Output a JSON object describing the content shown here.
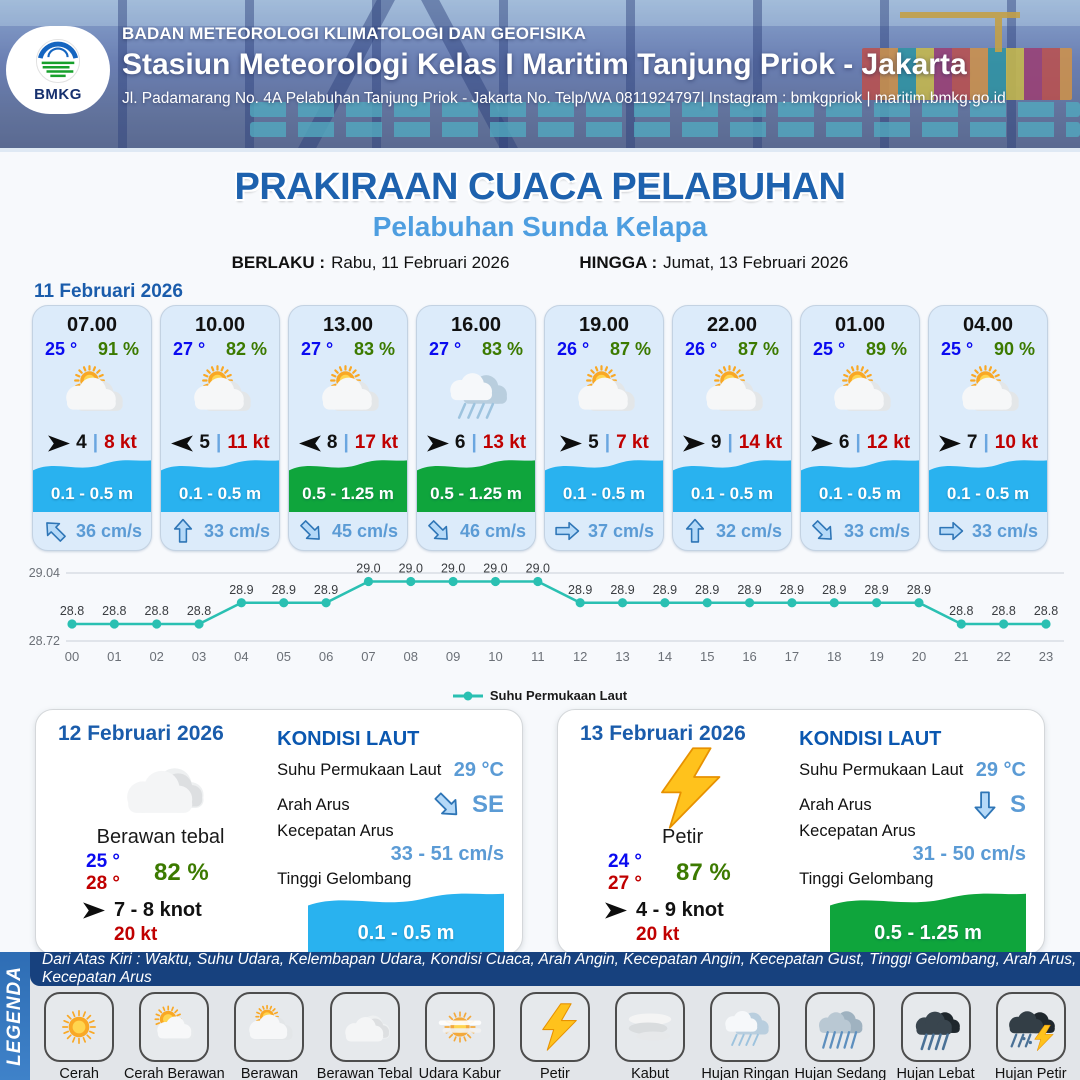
{
  "header": {
    "org": "BADAN METEOROLOGI KLIMATOLOGI DAN GEOFISIKA",
    "station": "Stasiun Meteorologi Kelas I Maritim Tanjung Priok - Jakarta",
    "address": "Jl. Padamarang No. 4A Pelabuhan Tanjung Priok - Jakarta No. Telp/WA 0811924797| Instagram : bmkgpriok | maritim.bmkg.go.id",
    "logo_text": "BMKG"
  },
  "title": {
    "main": "PRAKIRAAN CUACA PELABUHAN",
    "sub": "Pelabuhan Sunda Kelapa",
    "berlaku_label": "BERLAKU :",
    "berlaku_value": "Rabu, 11 Februari 2026",
    "hingga_label": "HINGGA :",
    "hingga_value": "Jumat, 13 Februari 2026"
  },
  "forecast": {
    "date": "11 Februari 2026",
    "cards": [
      {
        "time": "07.00",
        "temp": "25 °",
        "humidity": "91 %",
        "weather_icon": "berawan",
        "wind_dir": "e",
        "wind_speed": "4",
        "gust": "8 kt",
        "wave_height": "0.1 - 0.5 m",
        "wave_color": "cyan",
        "current_dir": "nw",
        "current_speed": "36 cm/s"
      },
      {
        "time": "10.00",
        "temp": "27 °",
        "humidity": "82 %",
        "weather_icon": "berawan",
        "wind_dir": "w",
        "wind_speed": "5",
        "gust": "11 kt",
        "wave_height": "0.1 - 0.5 m",
        "wave_color": "cyan",
        "current_dir": "n",
        "current_speed": "33 cm/s"
      },
      {
        "time": "13.00",
        "temp": "27 °",
        "humidity": "83 %",
        "weather_icon": "berawan",
        "wind_dir": "w",
        "wind_speed": "8",
        "gust": "17 kt",
        "wave_height": "0.5 - 1.25 m",
        "wave_color": "green",
        "current_dir": "se",
        "current_speed": "45 cm/s"
      },
      {
        "time": "16.00",
        "temp": "27 °",
        "humidity": "83 %",
        "weather_icon": "hujan-ringan",
        "wind_dir": "e",
        "wind_speed": "6",
        "gust": "13 kt",
        "wave_height": "0.5 - 1.25 m",
        "wave_color": "green",
        "current_dir": "se",
        "current_speed": "46 cm/s"
      },
      {
        "time": "19.00",
        "temp": "26 °",
        "humidity": "87 %",
        "weather_icon": "berawan",
        "wind_dir": "e",
        "wind_speed": "5",
        "gust": "7 kt",
        "wave_height": "0.1 - 0.5 m",
        "wave_color": "cyan",
        "current_dir": "e",
        "current_speed": "37 cm/s"
      },
      {
        "time": "22.00",
        "temp": "26 °",
        "humidity": "87 %",
        "weather_icon": "berawan",
        "wind_dir": "e",
        "wind_speed": "9",
        "gust": "14 kt",
        "wave_height": "0.1 - 0.5 m",
        "wave_color": "cyan",
        "current_dir": "n",
        "current_speed": "32 cm/s"
      },
      {
        "time": "01.00",
        "temp": "25 °",
        "humidity": "89 %",
        "weather_icon": "berawan",
        "wind_dir": "e",
        "wind_speed": "6",
        "gust": "12 kt",
        "wave_height": "0.1 - 0.5 m",
        "wave_color": "cyan",
        "current_dir": "se",
        "current_speed": "33 cm/s"
      },
      {
        "time": "04.00",
        "temp": "25 °",
        "humidity": "90 %",
        "weather_icon": "berawan",
        "wind_dir": "e",
        "wind_speed": "7",
        "gust": "10 kt",
        "wave_height": "0.1 - 0.5 m",
        "wave_color": "cyan",
        "current_dir": "e",
        "current_speed": "33 cm/s"
      }
    ]
  },
  "chart_data": {
    "type": "line",
    "x": [
      "00",
      "01",
      "02",
      "03",
      "04",
      "05",
      "06",
      "07",
      "08",
      "09",
      "10",
      "11",
      "12",
      "13",
      "14",
      "15",
      "16",
      "17",
      "18",
      "19",
      "20",
      "21",
      "22",
      "23"
    ],
    "values": [
      28.8,
      28.8,
      28.8,
      28.8,
      28.9,
      28.9,
      28.9,
      29.0,
      29.0,
      29.0,
      29.0,
      29.0,
      28.9,
      28.9,
      28.9,
      28.9,
      28.9,
      28.9,
      28.9,
      28.9,
      28.9,
      28.8,
      28.8,
      28.8
    ],
    "ylim": [
      28.72,
      29.04
    ],
    "ytick_labels": [
      "29.04",
      "28.72"
    ],
    "legend": "Suhu Permukaan Laut",
    "legend_position": "bottom",
    "grid": "horizontal-only",
    "line_color": "#2ac0b2"
  },
  "sea_labels": {
    "heading": "KONDISI LAUT",
    "sst": "Suhu Permukaan Laut",
    "dir": "Arah Arus",
    "speed": "Kecepatan Arus",
    "wave": "Tinggi Gelombang"
  },
  "days": [
    {
      "date": "12 Februari 2026",
      "weather_icon": "berawan-tebal",
      "condition": "Berawan tebal",
      "temp_min": "25 °",
      "temp_max": "28 °",
      "humidity": "82 %",
      "wind": "7  - 8 knot",
      "gust": "20 kt",
      "sea": {
        "sst": "29 °C",
        "current_dir": "se",
        "current_dir_label": "SE",
        "current_speed": "33  - 51 cm/s",
        "wave_height": "0.1 - 0.5 m",
        "wave_color": "cyan"
      }
    },
    {
      "date": "13 Februari 2026",
      "weather_icon": "petir",
      "condition": "Petir",
      "temp_min": "24 °",
      "temp_max": "27 °",
      "humidity": "87 %",
      "wind": "4  - 9 knot",
      "gust": "20 kt",
      "sea": {
        "sst": "29 °C",
        "current_dir": "s",
        "current_dir_label": "S",
        "current_speed": "31 - 50 cm/s",
        "wave_height": "0.5 - 1.25 m",
        "wave_color": "green"
      }
    }
  ],
  "legend": {
    "title": "LEGENDA",
    "description": "Dari Atas Kiri : Waktu, Suhu Udara, Kelembapan Udara, Kondisi Cuaca, Arah Angin, Kecepatan Angin, Kecepatan Gust, Tinggi Gelombang, Arah Arus, Kecepatan Arus",
    "items": [
      {
        "icon": "cerah",
        "label": "Cerah"
      },
      {
        "icon": "cerah-berawan",
        "label": "Cerah Berawan"
      },
      {
        "icon": "berawan",
        "label": "Berawan"
      },
      {
        "icon": "berawan-tebal",
        "label": "Berawan Tebal"
      },
      {
        "icon": "udara-kabur",
        "label": "Udara Kabur"
      },
      {
        "icon": "petir",
        "label": "Petir"
      },
      {
        "icon": "kabut",
        "label": "Kabut"
      },
      {
        "icon": "hujan-ringan",
        "label": "Hujan Ringan"
      },
      {
        "icon": "hujan-sedang",
        "label": "Hujan Sedang"
      },
      {
        "icon": "hujan-lebat",
        "label": "Hujan Lebat"
      },
      {
        "icon": "hujan-petir",
        "label": "Hujan Petir"
      }
    ]
  },
  "colors": {
    "title_blue": "#1e62ae",
    "subtitle_blue": "#4e9ee0",
    "date_blue": "#1a5cab",
    "kondisi_blue": "#0a57b0",
    "cyan": "#29b2ef",
    "green": "#0fa53c",
    "temp_blue": "#0a0af0",
    "humidity_green": "#3c7a00",
    "gust_red": "#c00000",
    "current_blue": "#5b9bd5",
    "chart_teal": "#2ac0b2"
  }
}
